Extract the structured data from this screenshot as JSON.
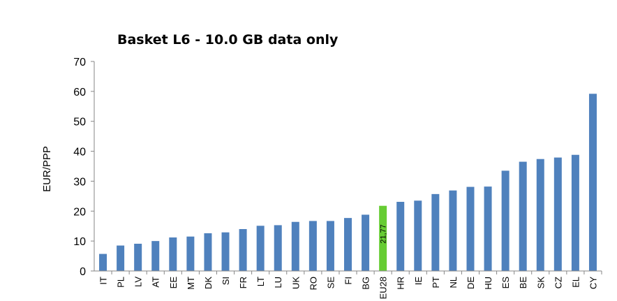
{
  "chart_data": {
    "type": "bar",
    "title": "Basket L6 - 10.0 GB data only",
    "ylabel": "EUR/PPP",
    "xlabel": "",
    "ylim": [
      0,
      70
    ],
    "yticks": [
      0,
      10,
      20,
      30,
      40,
      50,
      60,
      70
    ],
    "grid": false,
    "legend": "none",
    "categories": [
      "IT",
      "PL",
      "LV",
      "AT",
      "EE",
      "MT",
      "DK",
      "SI",
      "FR",
      "LT",
      "LU",
      "UK",
      "RO",
      "SE",
      "FI",
      "BG",
      "EU28",
      "HR",
      "IE",
      "PT",
      "NL",
      "DE",
      "HU",
      "ES",
      "BE",
      "SK",
      "CZ",
      "EL",
      "CY"
    ],
    "values": [
      5.7,
      8.5,
      9.1,
      10.0,
      11.2,
      11.5,
      12.6,
      12.9,
      14.0,
      15.1,
      15.3,
      16.4,
      16.7,
      16.7,
      17.7,
      18.8,
      21.77,
      23.1,
      23.5,
      25.7,
      26.9,
      28.1,
      28.2,
      33.5,
      36.5,
      37.4,
      37.9,
      38.8,
      59.2
    ],
    "highlight": {
      "category": "EU28",
      "label": "21,77"
    },
    "colors": {
      "bar": "#4f81bd",
      "highlight": "#66cc33",
      "axis": "#868686"
    }
  }
}
